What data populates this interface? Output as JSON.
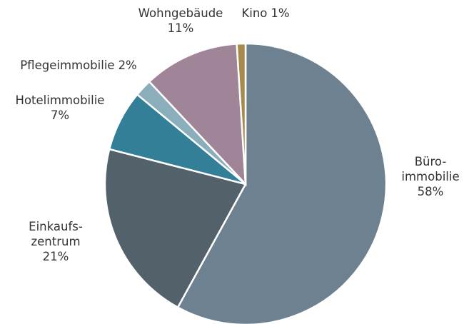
{
  "chart_data": {
    "type": "pie",
    "categories": [
      "Büro-\nimmobilie",
      "Einkaufs-\nzentrum",
      "Hotelimmobilie",
      "Pflegeimmobilie",
      "Wohngebäude",
      "Kino"
    ],
    "values": [
      58,
      21,
      7,
      2,
      11,
      1
    ],
    "value_labels": [
      "58%",
      "21%",
      "7%",
      "2%",
      "11%",
      "1%"
    ],
    "colors": [
      "#6e8190",
      "#53626a",
      "#347f98",
      "#8aaebb",
      "#a08497",
      "#a88a4a"
    ]
  }
}
